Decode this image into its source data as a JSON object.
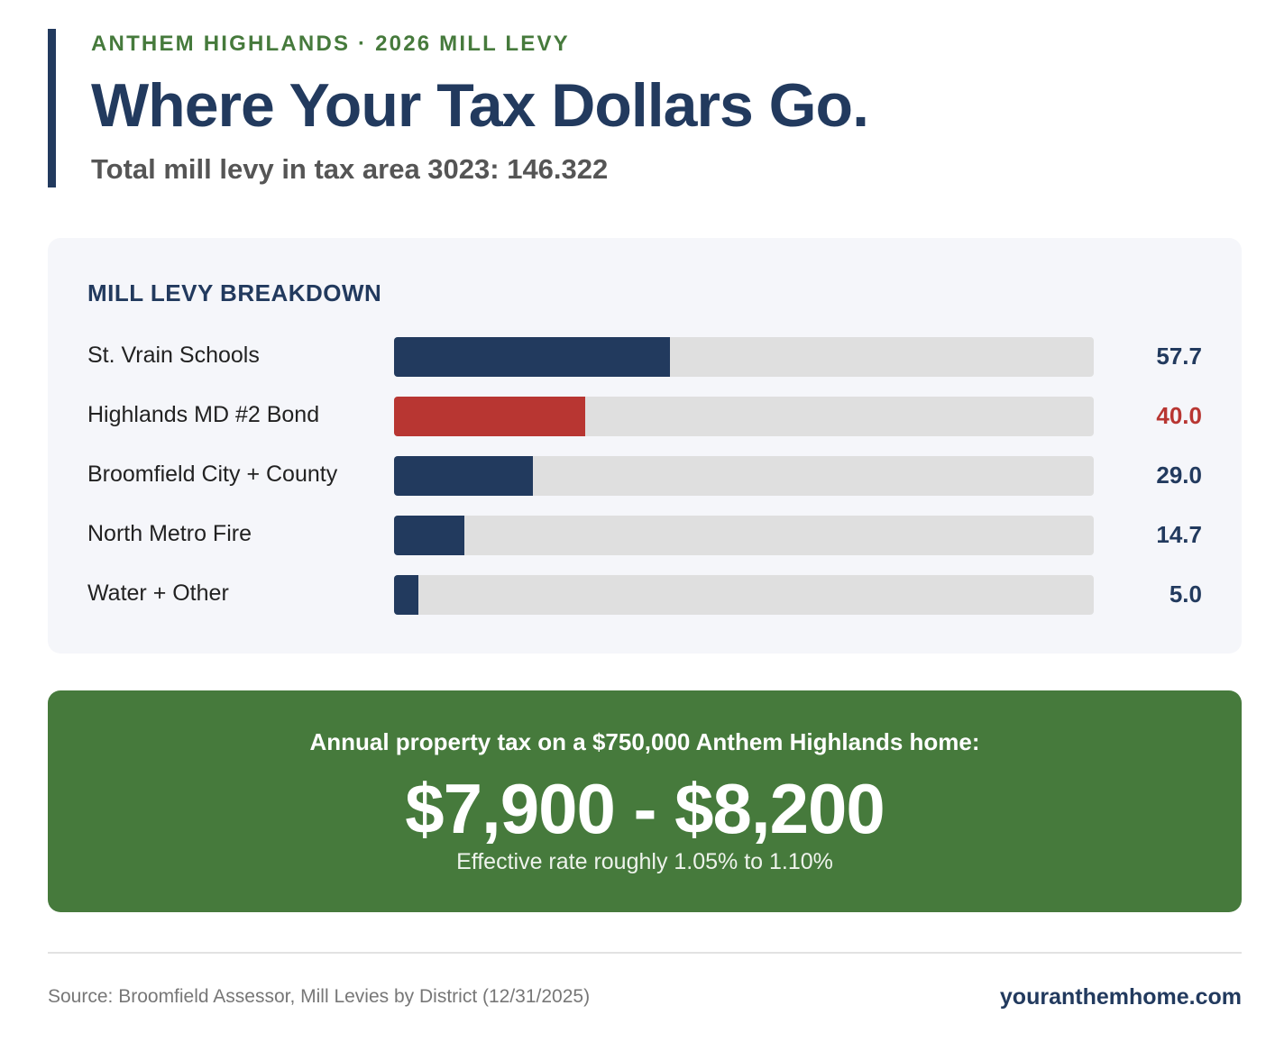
{
  "header": {
    "eyebrow": "ANTHEM HIGHLANDS · 2026 MILL LEVY",
    "title": "Where Your Tax Dollars Go.",
    "subtitle": "Total mill levy in tax area 3023: 146.322"
  },
  "colors": {
    "navy": "#223a5e",
    "highlight_red": "#b83632",
    "green": "#467a3c",
    "track": "#dfdfdf"
  },
  "chart_data": {
    "type": "bar",
    "orientation": "horizontal",
    "title": "MILL LEVY BREAKDOWN",
    "categories": [
      "St. Vrain Schools",
      "Highlands MD #2 Bond",
      "Broomfield City + County",
      "North Metro Fire",
      "Water + Other"
    ],
    "values": [
      57.7,
      40.0,
      29.0,
      14.7,
      5.0
    ],
    "value_labels": [
      "57.7",
      "40.0",
      "29.0",
      "14.7",
      "5.0"
    ],
    "highlight_index": 1,
    "xlim": [
      0,
      146.322
    ],
    "grid": false,
    "legend": "none"
  },
  "callout": {
    "lead": "Annual property tax on a $750,000 Anthem Highlands home:",
    "range": "$7,900 - $8,200",
    "note": "Effective rate roughly 1.05% to 1.10%"
  },
  "footer": {
    "source": "Source: Broomfield Assessor, Mill Levies by District (12/31/2025)",
    "site": "youranthemhome.com"
  }
}
